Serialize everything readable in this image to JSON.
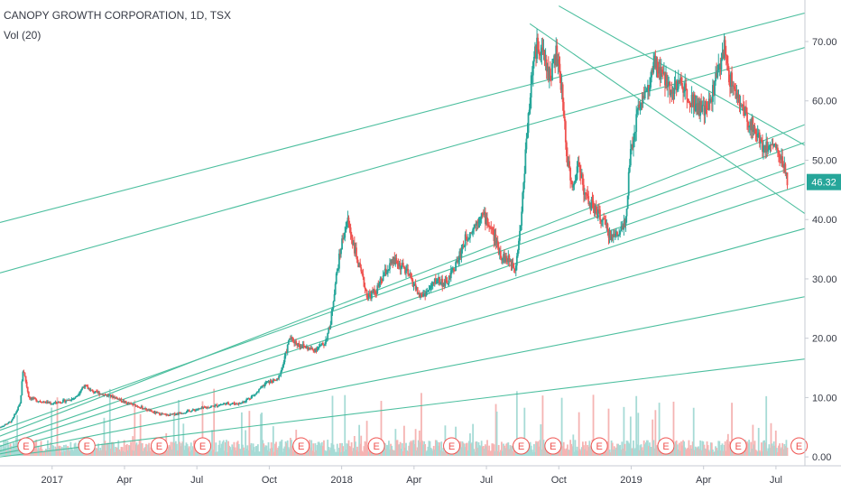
{
  "header": {
    "title": "CANOPY GROWTH CORPORATION, 1D, TSX",
    "volume_label": "Vol (20)"
  },
  "colors": {
    "up": "#26a69a",
    "down": "#ef5350",
    "trendline": "#4dbf9f",
    "vol_up": "#a7dbd6",
    "vol_down": "#f5b4b3",
    "price_tag": "#26a69a",
    "earnings": "#ef5350",
    "text": "#363a45",
    "axis_border": "#c7cbd3"
  },
  "chart_data": {
    "type": "candlestick",
    "ticker": "CANOPY GROWTH CORPORATION",
    "interval": "1D",
    "exchange": "TSX",
    "last_price": "46.32",
    "y_ticks": [
      "70.00",
      "60.00",
      "50.00",
      "40.00",
      "30.00",
      "20.00",
      "10.00",
      "0.00"
    ],
    "y_tick_values": [
      70,
      60,
      50,
      40,
      30,
      20,
      10,
      0
    ],
    "ylim": [
      -1.5,
      77
    ],
    "xlim": [
      2016.82,
      2019.6
    ],
    "x_ticks": [
      "2017",
      "Apr",
      "Jul",
      "Oct",
      "2018",
      "Apr",
      "Jul",
      "Oct",
      "2019",
      "Apr",
      "Jul"
    ],
    "x_tick_values": [
      2017.0,
      2017.25,
      2017.5,
      2017.75,
      2018.0,
      2018.25,
      2018.5,
      2018.75,
      2019.0,
      2019.25,
      2019.5
    ],
    "earnings_label": "E",
    "earnings_dates": [
      2016.91,
      2017.12,
      2017.37,
      2017.52,
      2017.86,
      2018.12,
      2018.38,
      2018.62,
      2018.73,
      2018.89,
      2019.12,
      2019.37,
      2019.58
    ],
    "price_path": [
      [
        2016.82,
        5.0
      ],
      [
        2016.86,
        6.0
      ],
      [
        2016.89,
        9.0
      ],
      [
        2016.9,
        15.0
      ],
      [
        2016.92,
        10.0
      ],
      [
        2016.95,
        9.5
      ],
      [
        2017.0,
        9.0
      ],
      [
        2017.05,
        9.5
      ],
      [
        2017.08,
        10.0
      ],
      [
        2017.11,
        12.0
      ],
      [
        2017.14,
        11.0
      ],
      [
        2017.18,
        10.5
      ],
      [
        2017.22,
        10.0
      ],
      [
        2017.26,
        9.0
      ],
      [
        2017.3,
        8.5
      ],
      [
        2017.35,
        7.5
      ],
      [
        2017.4,
        7.0
      ],
      [
        2017.45,
        7.5
      ],
      [
        2017.5,
        8.0
      ],
      [
        2017.55,
        8.5
      ],
      [
        2017.6,
        9.0
      ],
      [
        2017.65,
        9.0
      ],
      [
        2017.7,
        10.5
      ],
      [
        2017.74,
        12.5
      ],
      [
        2017.78,
        13.0
      ],
      [
        2017.8,
        16.0
      ],
      [
        2017.82,
        20.0
      ],
      [
        2017.85,
        19.0
      ],
      [
        2017.9,
        18.0
      ],
      [
        2017.94,
        19.0
      ],
      [
        2017.96,
        22.0
      ],
      [
        2017.98,
        30.0
      ],
      [
        2018.0,
        36.0
      ],
      [
        2018.02,
        40.0
      ],
      [
        2018.04,
        36.0
      ],
      [
        2018.06,
        32.0
      ],
      [
        2018.09,
        27.0
      ],
      [
        2018.12,
        28.0
      ],
      [
        2018.15,
        31.0
      ],
      [
        2018.18,
        33.0
      ],
      [
        2018.21,
        32.0
      ],
      [
        2018.24,
        30.0
      ],
      [
        2018.27,
        27.0
      ],
      [
        2018.3,
        28.0
      ],
      [
        2018.33,
        30.0
      ],
      [
        2018.36,
        29.0
      ],
      [
        2018.4,
        33.0
      ],
      [
        2018.43,
        37.0
      ],
      [
        2018.46,
        39.0
      ],
      [
        2018.48,
        41.0
      ],
      [
        2018.5,
        40.0
      ],
      [
        2018.52,
        38.0
      ],
      [
        2018.55,
        34.0
      ],
      [
        2018.58,
        33.0
      ],
      [
        2018.6,
        32.0
      ],
      [
        2018.62,
        40.0
      ],
      [
        2018.64,
        55.0
      ],
      [
        2018.66,
        66.0
      ],
      [
        2018.68,
        70.0
      ],
      [
        2018.7,
        67.0
      ],
      [
        2018.72,
        64.0
      ],
      [
        2018.74,
        68.0
      ],
      [
        2018.76,
        62.0
      ],
      [
        2018.78,
        50.0
      ],
      [
        2018.8,
        45.0
      ],
      [
        2018.82,
        50.0
      ],
      [
        2018.84,
        44.0
      ],
      [
        2018.87,
        42.0
      ],
      [
        2018.9,
        40.0
      ],
      [
        2018.93,
        37.0
      ],
      [
        2018.96,
        38.0
      ],
      [
        2018.98,
        40.0
      ],
      [
        2019.0,
        52.0
      ],
      [
        2019.03,
        60.0
      ],
      [
        2019.06,
        62.0
      ],
      [
        2019.08,
        66.0
      ],
      [
        2019.11,
        64.0
      ],
      [
        2019.14,
        62.0
      ],
      [
        2019.17,
        63.0
      ],
      [
        2019.2,
        61.0
      ],
      [
        2019.23,
        59.0
      ],
      [
        2019.26,
        58.0
      ],
      [
        2019.29,
        63.0
      ],
      [
        2019.32,
        69.0
      ],
      [
        2019.34,
        64.0
      ],
      [
        2019.37,
        60.0
      ],
      [
        2019.4,
        57.0
      ],
      [
        2019.43,
        55.0
      ],
      [
        2019.46,
        52.0
      ],
      [
        2019.49,
        53.0
      ],
      [
        2019.52,
        50.0
      ],
      [
        2019.54,
        46.32
      ]
    ],
    "trendlines": [
      [
        [
          2016.82,
          39.5
        ],
        [
          2019.6,
          74.8
        ]
      ],
      [
        [
          2016.82,
          31.0
        ],
        [
          2019.6,
          69.0
        ]
      ],
      [
        [
          2016.82,
          3.5
        ],
        [
          2019.6,
          56.0
        ]
      ],
      [
        [
          2016.82,
          4.5
        ],
        [
          2019.6,
          53.0
        ]
      ],
      [
        [
          2016.82,
          2.5
        ],
        [
          2019.6,
          49.5
        ]
      ],
      [
        [
          2016.82,
          1.8
        ],
        [
          2019.6,
          46.0
        ]
      ],
      [
        [
          2016.82,
          1.0
        ],
        [
          2019.6,
          38.5
        ]
      ],
      [
        [
          2016.82,
          0.5
        ],
        [
          2019.6,
          27.0
        ]
      ],
      [
        [
          2016.82,
          0.0
        ],
        [
          2019.6,
          16.5
        ]
      ],
      [
        [
          2018.65,
          73.0
        ],
        [
          2019.6,
          41.0
        ]
      ],
      [
        [
          2018.75,
          76.0
        ],
        [
          2019.6,
          52.5
        ]
      ]
    ]
  }
}
